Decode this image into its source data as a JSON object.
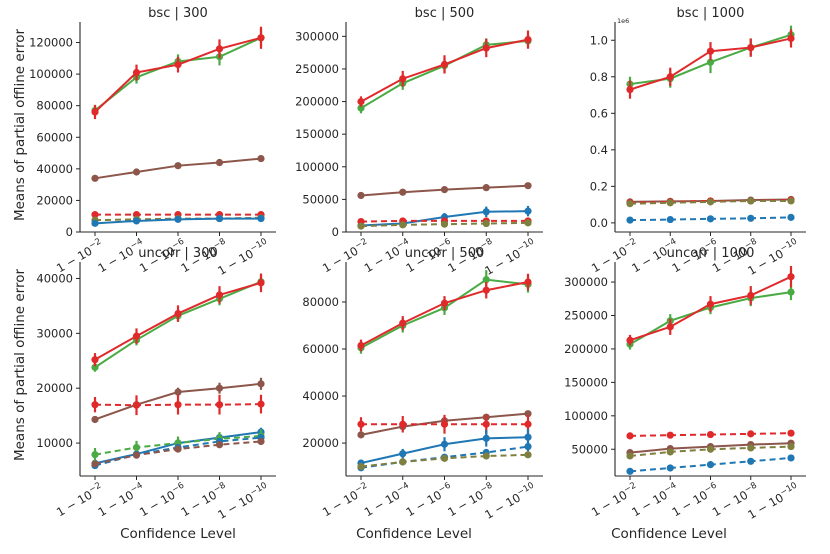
{
  "figure": {
    "ylabel": "Means of partial offline error",
    "xlabel": "Confidence Level",
    "x_tick_labels": [
      [
        "1 − 10",
        "−2"
      ],
      [
        "1 − 10",
        "−4"
      ],
      [
        "1 − 10",
        "−6"
      ],
      [
        "1 − 10",
        "−8"
      ],
      [
        "1 − 10",
        "−10"
      ]
    ],
    "colors": {
      "blue": "#1f77b4",
      "green": "#4aab45",
      "red": "#e0292b",
      "brown": "#8c564b",
      "olive": "#7f7f3f"
    }
  },
  "chart_data": [
    {
      "type": "line",
      "title": "bsc | 300",
      "xlabel": "Confidence Level",
      "ylabel": "Means of partial offline error",
      "categories": [
        "1-10^-2",
        "1-10^-4",
        "1-10^-6",
        "1-10^-8",
        "1-10^-10"
      ],
      "ylim": [
        0,
        133000
      ],
      "yticks": [
        0,
        20000,
        40000,
        60000,
        80000,
        100000,
        120000
      ],
      "ytick_labels": [
        "0",
        "20000",
        "40000",
        "60000",
        "80000",
        "100000",
        "120000"
      ],
      "sci_label": "",
      "series": [
        {
          "name": "green solid",
          "color": "#4aab45",
          "dashed": false,
          "values": [
            77000,
            98000,
            108000,
            111000,
            123000
          ],
          "err": [
            3500,
            4000,
            4500,
            5500,
            6000
          ]
        },
        {
          "name": "red solid",
          "color": "#e0292b",
          "dashed": false,
          "values": [
            76000,
            101000,
            106000,
            116000,
            123000
          ],
          "err": [
            4500,
            5000,
            5000,
            6000,
            7000
          ]
        },
        {
          "name": "brown solid",
          "color": "#8c564b",
          "dashed": false,
          "values": [
            34000,
            38000,
            42000,
            44000,
            46500
          ],
          "err": [
            700,
            700,
            700,
            700,
            700
          ]
        },
        {
          "name": "red dashed",
          "color": "#e0292b",
          "dashed": true,
          "values": [
            11000,
            11000,
            11000,
            11000,
            11000
          ],
          "err": [
            400,
            400,
            400,
            400,
            400
          ]
        },
        {
          "name": "olive dashed",
          "color": "#7f7f3f",
          "dashed": true,
          "values": [
            7500,
            8000,
            8500,
            8500,
            9000
          ],
          "err": [
            300,
            300,
            300,
            300,
            300
          ]
        },
        {
          "name": "blue solid",
          "color": "#1f77b4",
          "dashed": false,
          "values": [
            5500,
            7000,
            8000,
            8500,
            8500
          ],
          "err": [
            300,
            300,
            300,
            300,
            300
          ]
        }
      ]
    },
    {
      "type": "line",
      "title": "bsc | 500",
      "xlabel": "Confidence Level",
      "ylabel": "",
      "categories": [
        "1-10^-2",
        "1-10^-4",
        "1-10^-6",
        "1-10^-8",
        "1-10^-10"
      ],
      "ylim": [
        0,
        322000
      ],
      "yticks": [
        0,
        50000,
        100000,
        150000,
        200000,
        250000,
        300000
      ],
      "ytick_labels": [
        "0",
        "50000",
        "100000",
        "150000",
        "200000",
        "250000",
        "300000"
      ],
      "sci_label": "",
      "series": [
        {
          "name": "green solid",
          "color": "#4aab45",
          "dashed": false,
          "values": [
            190000,
            228000,
            255000,
            287000,
            293000
          ],
          "err": [
            8000,
            10000,
            12000,
            10000,
            10000
          ]
        },
        {
          "name": "red solid",
          "color": "#e0292b",
          "dashed": false,
          "values": [
            200000,
            235000,
            257000,
            282000,
            295000
          ],
          "err": [
            8000,
            12000,
            14000,
            14000,
            14000
          ]
        },
        {
          "name": "brown solid",
          "color": "#8c564b",
          "dashed": false,
          "values": [
            56000,
            61000,
            65000,
            68000,
            71000
          ],
          "err": [
            1500,
            1500,
            1500,
            1500,
            1500
          ]
        },
        {
          "name": "blue solid",
          "color": "#1f77b4",
          "dashed": false,
          "values": [
            10000,
            13000,
            23000,
            31000,
            32000
          ],
          "err": [
            2000,
            3000,
            6000,
            8000,
            8000
          ]
        },
        {
          "name": "red dashed",
          "color": "#e0292b",
          "dashed": true,
          "values": [
            16000,
            17000,
            17000,
            17000,
            17000
          ],
          "err": [
            1000,
            1000,
            1000,
            1000,
            1000
          ]
        },
        {
          "name": "olive dashed",
          "color": "#7f7f3f",
          "dashed": true,
          "values": [
            9000,
            11000,
            12000,
            13000,
            14000
          ],
          "err": [
            800,
            800,
            800,
            800,
            800
          ]
        }
      ]
    },
    {
      "type": "line",
      "title": "bsc | 1000",
      "xlabel": "Confidence Level",
      "ylabel": "",
      "categories": [
        "1-10^-2",
        "1-10^-4",
        "1-10^-6",
        "1-10^-8",
        "1-10^-10"
      ],
      "ylim": [
        -0.05,
        1.1
      ],
      "yticks": [
        0,
        0.2,
        0.4,
        0.6,
        0.8,
        1.0
      ],
      "ytick_labels": [
        "0.0",
        "0.2",
        "0.4",
        "0.6",
        "0.8",
        "1.0"
      ],
      "sci_label": "1e6",
      "series": [
        {
          "name": "green solid",
          "color": "#4aab45",
          "dashed": false,
          "values": [
            0.76,
            0.79,
            0.88,
            0.96,
            1.03
          ],
          "err": [
            0.04,
            0.05,
            0.06,
            0.05,
            0.05
          ]
        },
        {
          "name": "red solid",
          "color": "#e0292b",
          "dashed": false,
          "values": [
            0.73,
            0.8,
            0.94,
            0.96,
            1.01
          ],
          "err": [
            0.05,
            0.05,
            0.05,
            0.05,
            0.05
          ]
        },
        {
          "name": "brown solid",
          "color": "#8c564b",
          "dashed": false,
          "values": [
            0.115,
            0.118,
            0.12,
            0.125,
            0.128
          ],
          "err": [
            0.005,
            0.005,
            0.005,
            0.005,
            0.005
          ]
        },
        {
          "name": "red dashed",
          "color": "#e0292b",
          "dashed": true,
          "values": [
            0.11,
            0.115,
            0.12,
            0.12,
            0.125
          ],
          "err": [
            0.004,
            0.004,
            0.004,
            0.004,
            0.004
          ]
        },
        {
          "name": "olive dashed",
          "color": "#7f7f3f",
          "dashed": true,
          "values": [
            0.105,
            0.11,
            0.115,
            0.12,
            0.12
          ],
          "err": [
            0.004,
            0.004,
            0.004,
            0.004,
            0.004
          ]
        },
        {
          "name": "blue dashed",
          "color": "#1f77b4",
          "dashed": true,
          "values": [
            0.015,
            0.018,
            0.022,
            0.025,
            0.03
          ],
          "err": [
            0.002,
            0.002,
            0.002,
            0.002,
            0.002
          ]
        }
      ]
    },
    {
      "type": "line",
      "title": "uncorr | 300",
      "xlabel": "Confidence Level",
      "ylabel": "Means of partial offline error",
      "categories": [
        "1-10^-2",
        "1-10^-4",
        "1-10^-6",
        "1-10^-8",
        "1-10^-10"
      ],
      "ylim": [
        4000,
        43000
      ],
      "yticks": [
        10000,
        20000,
        30000,
        40000
      ],
      "ytick_labels": [
        "10000",
        "20000",
        "30000",
        "40000"
      ],
      "sci_label": "",
      "series": [
        {
          "name": "green solid",
          "color": "#4aab45",
          "dashed": false,
          "values": [
            23800,
            28800,
            33200,
            36300,
            39400
          ],
          "err": [
            800,
            1000,
            1100,
            1200,
            1300
          ]
        },
        {
          "name": "red solid",
          "color": "#e0292b",
          "dashed": false,
          "values": [
            25200,
            29500,
            33600,
            37000,
            39200
          ],
          "err": [
            1200,
            1400,
            1500,
            1600,
            1700
          ]
        },
        {
          "name": "brown solid",
          "color": "#8c564b",
          "dashed": false,
          "values": [
            14300,
            17000,
            19300,
            20000,
            20800
          ],
          "err": [
            600,
            700,
            800,
            1000,
            1100
          ]
        },
        {
          "name": "red dashed",
          "color": "#e0292b",
          "dashed": true,
          "values": [
            17000,
            16900,
            17000,
            17000,
            17100
          ],
          "err": [
            1400,
            1800,
            1800,
            1800,
            1700
          ]
        },
        {
          "name": "blue solid",
          "color": "#1f77b4",
          "dashed": false,
          "values": [
            6300,
            8000,
            10000,
            11000,
            12000
          ],
          "err": [
            600,
            700,
            700,
            700,
            800
          ]
        },
        {
          "name": "green dashed",
          "color": "#4aab45",
          "dashed": true,
          "values": [
            7900,
            9200,
            10000,
            10800,
            11300
          ],
          "err": [
            1200,
            1200,
            1200,
            1200,
            1200
          ]
        },
        {
          "name": "blue dashed",
          "color": "#1f77b4",
          "dashed": true,
          "values": [
            5900,
            7900,
            9200,
            10300,
            11000
          ],
          "err": [
            400,
            400,
            500,
            500,
            500
          ]
        },
        {
          "name": "brown dashed",
          "color": "#8c564b",
          "dashed": true,
          "values": [
            6200,
            7800,
            8900,
            9700,
            10300
          ],
          "err": [
            500,
            500,
            500,
            600,
            600
          ]
        }
      ]
    },
    {
      "type": "line",
      "title": "uncorr | 500",
      "xlabel": "Confidence Level",
      "ylabel": "",
      "categories": [
        "1-10^-2",
        "1-10^-4",
        "1-10^-6",
        "1-10^-8",
        "1-10^-10"
      ],
      "ylim": [
        6000,
        97000
      ],
      "yticks": [
        20000,
        40000,
        60000,
        80000
      ],
      "ytick_labels": [
        "20000",
        "40000",
        "60000",
        "80000"
      ],
      "sci_label": "",
      "series": [
        {
          "name": "green solid",
          "color": "#4aab45",
          "dashed": false,
          "values": [
            60500,
            70000,
            77500,
            89500,
            87500
          ],
          "err": [
            2500,
            3000,
            3000,
            4000,
            3500
          ]
        },
        {
          "name": "red solid",
          "color": "#e0292b",
          "dashed": false,
          "values": [
            61500,
            71000,
            79500,
            85000,
            88500
          ],
          "err": [
            2500,
            3000,
            3000,
            3500,
            3500
          ]
        },
        {
          "name": "brown solid",
          "color": "#8c564b",
          "dashed": false,
          "values": [
            23500,
            27000,
            29500,
            31000,
            32500
          ],
          "err": [
            1000,
            1000,
            1000,
            1000,
            1000
          ]
        },
        {
          "name": "red dashed",
          "color": "#e0292b",
          "dashed": true,
          "values": [
            28000,
            28000,
            28000,
            28000,
            28000
          ],
          "err": [
            3000,
            3500,
            4000,
            4000,
            4000
          ]
        },
        {
          "name": "blue solid",
          "color": "#1f77b4",
          "dashed": false,
          "values": [
            11500,
            15500,
            19500,
            22000,
            22500
          ],
          "err": [
            1500,
            2000,
            3000,
            3500,
            3500
          ]
        },
        {
          "name": "blue dashed",
          "color": "#1f77b4",
          "dashed": true,
          "values": [
            9500,
            12000,
            14000,
            16000,
            18500
          ],
          "err": [
            800,
            1000,
            1200,
            1500,
            2000
          ]
        },
        {
          "name": "olive dashed",
          "color": "#7f7f3f",
          "dashed": true,
          "values": [
            10000,
            12000,
            13500,
            14500,
            15000
          ],
          "err": [
            800,
            800,
            1000,
            1000,
            1000
          ]
        }
      ]
    },
    {
      "type": "line",
      "title": "uncorr | 1000",
      "xlabel": "Confidence Level",
      "ylabel": "",
      "categories": [
        "1-10^-2",
        "1-10^-4",
        "1-10^-6",
        "1-10^-8",
        "1-10^-10"
      ],
      "ylim": [
        10000,
        330000
      ],
      "yticks": [
        50000,
        100000,
        150000,
        200000,
        250000,
        300000
      ],
      "ytick_labels": [
        "50000",
        "100000",
        "150000",
        "200000",
        "250000",
        "300000"
      ],
      "sci_label": "",
      "series": [
        {
          "name": "green solid",
          "color": "#4aab45",
          "dashed": false,
          "values": [
            207000,
            242000,
            262000,
            276000,
            285000
          ],
          "err": [
            8000,
            10000,
            10000,
            12000,
            12000
          ]
        },
        {
          "name": "red solid",
          "color": "#e0292b",
          "dashed": false,
          "values": [
            213000,
            233000,
            267000,
            280000,
            308000
          ],
          "err": [
            8000,
            12000,
            12000,
            14000,
            16000
          ]
        },
        {
          "name": "red dashed",
          "color": "#e0292b",
          "dashed": true,
          "values": [
            70000,
            71000,
            72000,
            73000,
            74000
          ],
          "err": [
            2000,
            2000,
            2000,
            2000,
            2000
          ]
        },
        {
          "name": "brown solid",
          "color": "#8c564b",
          "dashed": false,
          "values": [
            45000,
            51000,
            54000,
            57000,
            59000
          ],
          "err": [
            2000,
            2000,
            2000,
            2000,
            2000
          ]
        },
        {
          "name": "olive dashed",
          "color": "#7f7f3f",
          "dashed": true,
          "values": [
            40000,
            46000,
            50000,
            52000,
            54000
          ],
          "err": [
            2000,
            2000,
            2000,
            2000,
            2000
          ]
        },
        {
          "name": "blue dashed",
          "color": "#1f77b4",
          "dashed": true,
          "values": [
            17000,
            22000,
            27000,
            32000,
            37000
          ],
          "err": [
            1000,
            1000,
            1000,
            1000,
            1000
          ]
        }
      ]
    }
  ]
}
